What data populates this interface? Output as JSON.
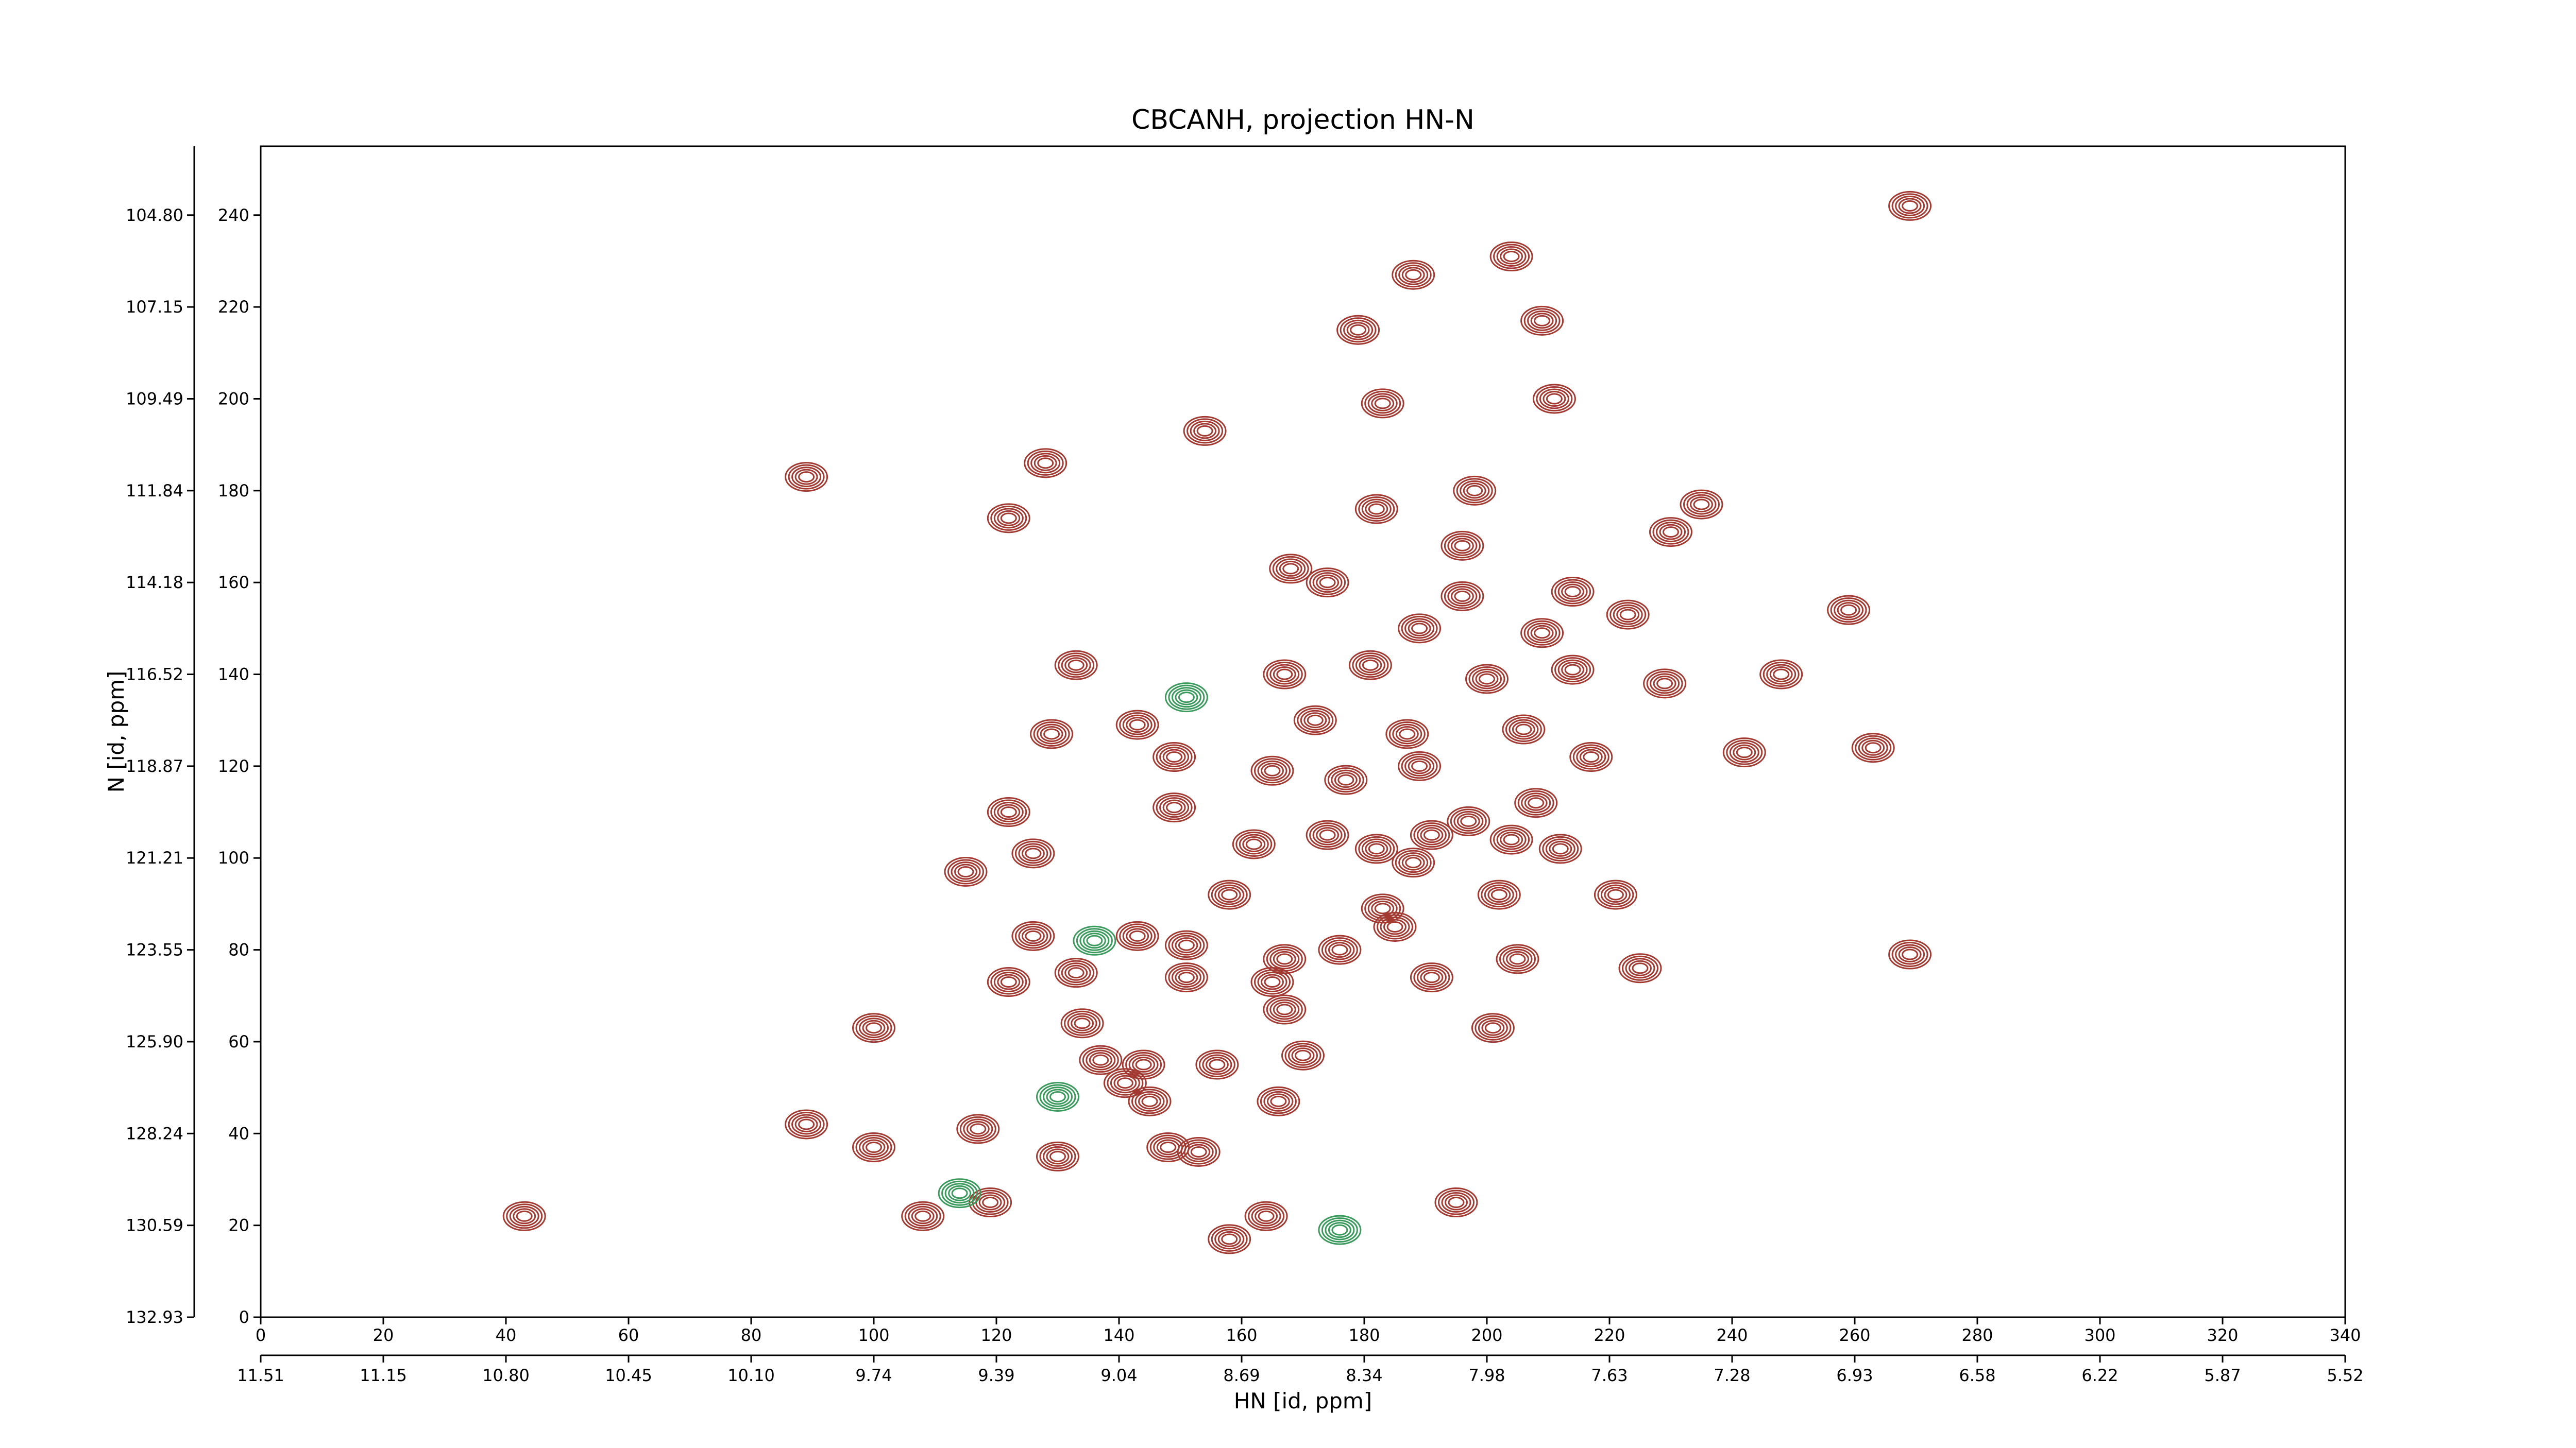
{
  "chart_data": {
    "type": "contour",
    "title": "CBCANH, projection HN-N",
    "xlabel": "HN [id, ppm]",
    "ylabel": "N [id, ppm]",
    "xlim": [
      0,
      340
    ],
    "ylim": [
      0,
      255
    ],
    "xticks": [
      0,
      20,
      40,
      60,
      80,
      100,
      120,
      140,
      160,
      180,
      200,
      220,
      240,
      260,
      280,
      300,
      320,
      340
    ],
    "yticks": [
      0,
      20,
      40,
      60,
      80,
      100,
      120,
      140,
      160,
      180,
      200,
      220,
      240
    ],
    "x2ticks": [
      {
        "value": 0,
        "label": "11.51"
      },
      {
        "value": 20,
        "label": "11.15"
      },
      {
        "value": 40,
        "label": "10.80"
      },
      {
        "value": 60,
        "label": "10.45"
      },
      {
        "value": 80,
        "label": "10.10"
      },
      {
        "value": 100,
        "label": "9.74"
      },
      {
        "value": 120,
        "label": "9.39"
      },
      {
        "value": 140,
        "label": "9.04"
      },
      {
        "value": 160,
        "label": "8.69"
      },
      {
        "value": 180,
        "label": "8.34"
      },
      {
        "value": 200,
        "label": "7.98"
      },
      {
        "value": 220,
        "label": "7.63"
      },
      {
        "value": 240,
        "label": "7.28"
      },
      {
        "value": 260,
        "label": "6.93"
      },
      {
        "value": 280,
        "label": "6.58"
      },
      {
        "value": 300,
        "label": "6.22"
      },
      {
        "value": 320,
        "label": "5.87"
      },
      {
        "value": 340,
        "label": "5.52"
      }
    ],
    "y2ticks": [
      {
        "value": 0,
        "label": "132.93"
      },
      {
        "value": 20,
        "label": "130.59"
      },
      {
        "value": 40,
        "label": "128.24"
      },
      {
        "value": 60,
        "label": "125.90"
      },
      {
        "value": 80,
        "label": "123.55"
      },
      {
        "value": 100,
        "label": "121.21"
      },
      {
        "value": 120,
        "label": "118.87"
      },
      {
        "value": 140,
        "label": "116.52"
      },
      {
        "value": 160,
        "label": "114.18"
      },
      {
        "value": 180,
        "label": "111.84"
      },
      {
        "value": 200,
        "label": "109.49"
      },
      {
        "value": 220,
        "label": "107.15"
      },
      {
        "value": 240,
        "label": "104.80"
      }
    ],
    "series": [
      {
        "color": "#a33a32",
        "x": [
          269,
          204,
          188,
          209,
          179,
          211,
          183,
          154,
          128,
          89,
          198,
          235,
          182,
          122,
          230,
          196,
          168,
          174,
          214,
          223,
          259,
          196,
          209,
          189,
          133,
          167,
          181,
          200,
          214,
          229,
          248,
          129,
          143,
          172,
          206,
          242,
          263,
          149,
          217,
          187,
          177,
          189,
          165,
          149,
          208,
          122,
          162,
          174,
          182,
          188,
          191,
          197,
          204,
          212,
          126,
          115,
          158,
          202,
          221,
          183,
          126,
          143,
          151,
          176,
          185,
          167,
          205,
          269,
          225,
          122,
          133,
          151,
          191,
          165,
          167,
          134,
          100,
          201,
          137,
          170,
          144,
          156,
          141,
          166,
          145,
          89,
          117,
          130,
          148,
          153,
          100,
          119,
          108,
          195,
          164,
          158,
          43
        ],
        "values": [
          242,
          231,
          227,
          217,
          215,
          200,
          199,
          193,
          186,
          183,
          180,
          177,
          176,
          174,
          171,
          168,
          163,
          160,
          158,
          153,
          154,
          157,
          149,
          150,
          142,
          140,
          142,
          139,
          141,
          138,
          140,
          127,
          129,
          130,
          128,
          123,
          124,
          122,
          122,
          127,
          117,
          120,
          119,
          111,
          112,
          110,
          103,
          105,
          102,
          99,
          105,
          108,
          104,
          102,
          101,
          97,
          92,
          92,
          92,
          89,
          83,
          83,
          81,
          80,
          85,
          78,
          78,
          79,
          76,
          73,
          75,
          74,
          74,
          73,
          67,
          64,
          63,
          63,
          56,
          57,
          55,
          55,
          51,
          47,
          47,
          42,
          41,
          35,
          37,
          36,
          37,
          25,
          22,
          25,
          22,
          17,
          22
        ]
      },
      {
        "color": "#3a9a5c",
        "x": [
          151,
          136,
          130,
          114,
          176
        ],
        "values": [
          135,
          82,
          48,
          27,
          19
        ]
      }
    ]
  }
}
